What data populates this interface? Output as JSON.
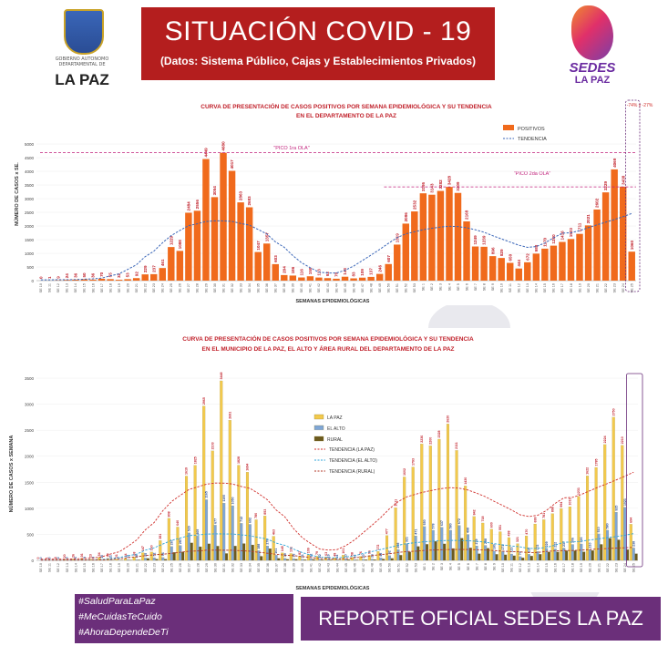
{
  "header": {
    "left_logo_lines": "GOBIERNO AUTONOMO DEPARTAMENTAL DE",
    "left_logo_name": "LA PAZ",
    "title": "SITUACIÓN  COVID - 19",
    "subtitle": "(Datos: Sistema Público, Cajas y Establecimientos Privados)",
    "right_logo_top": "SEDES",
    "right_logo_bottom": "LA PAZ"
  },
  "chart1": {
    "title_line1": "CURVA DE PRESENTACIÓN DE CASOS POSITIVOS POR SEMANA EPIDEMIOLÓGICA Y SU TENDENCIA",
    "title_line2": "EN EL DEPARTAMENTO DE LA PAZ",
    "ylabel": "NÚMERO DE CASOS x SE.",
    "xlabel": "SEMANAS EPIDEMIOLÓGICAS",
    "legend_bar": "POSITIVOS",
    "legend_line": "TENDENCIA",
    "peak1_label": "\"PICO 1ra OLA\"",
    "peak2_label": "\"PICO 2da OLA\"",
    "corner_note": "-74% y -27%",
    "colors": {
      "bar": "#f06a1c",
      "trend": "#3a66b8",
      "peak": "#c01f7a"
    }
  },
  "chart2": {
    "title_line1": "CURVA DE PRESENTACIÓN DE CASOS POSITIVOS POR SEMANA EPIDEMIOLÓGICA Y SU TENDENCIA",
    "title_line2": "EN EL  MUNICIPIO DE LA PAZ, EL ALTO Y ÁREA RURAL DEL DEPARTAMENTO DE LA PAZ",
    "ylabel": "NÚMERO DE CASOS x SEMANA",
    "xlabel": "SEMANAS EPIDEMIOLÓGICAS",
    "legend": [
      "LA PAZ",
      "EL ALTO",
      "RURAL",
      "TENDENCIA (LA PAZ)",
      "TENDENCIA (EL ALTO)",
      "TENDENCIA (RURAL)"
    ],
    "colors": {
      "lapaz": "#f2c94c",
      "elalto": "#7fa6d6",
      "rural": "#6b5a1e",
      "t_lapaz": "#d0312d",
      "t_elalto": "#2fa4d8",
      "t_rural": "#b33a2a"
    }
  },
  "chart_data": [
    {
      "type": "bar",
      "title": "CURVA DE PRESENTACIÓN DE CASOS POSITIVOS POR SEMANA EPIDEMIOLÓGICA Y SU TENDENCIA EN EL DEPARTAMENTO DE LA PAZ",
      "xlabel": "SEMANAS EPIDEMIOLÓGICAS",
      "ylabel": "NÚMERO DE CASOS x SE.",
      "ylim": [
        0,
        5000
      ],
      "yticks": [
        0,
        500,
        1000,
        1500,
        2000,
        2500,
        3000,
        3500,
        4000,
        4500,
        5000
      ],
      "series": [
        {
          "name": "POSITIVOS",
          "values": [
            0,
            1,
            9,
            24,
            36,
            50,
            36,
            70,
            55,
            32,
            53,
            92,
            229,
            237,
            461,
            1229,
            1088,
            2484,
            2556,
            4449,
            3054,
            4680,
            4017,
            2863,
            2683,
            1047,
            1357,
            603,
            204,
            186,
            116,
            159,
            113,
            92,
            70,
            143,
            83,
            109,
            137,
            246,
            607,
            1319,
            2086,
            2532,
            3195,
            3143,
            3282,
            3428,
            3209,
            2168,
            1249,
            1239,
            896,
            829,
            650,
            444,
            672,
            988,
            1170,
            1280,
            1416,
            1523,
            1711,
            2021,
            2602,
            3229,
            4069,
            3438,
            1060
          ]
        }
      ],
      "legend": "top-right"
    },
    {
      "type": "bar",
      "title": "CURVA DE PRESENTACIÓN DE CASOS POSITIVOS POR SEMANA EPIDEMIOLÓGICA Y SU TENDENCIA EN EL  MUNICIPIO DE LA PAZ, EL ALTO Y ÁREA RURAL DEL DEPARTAMENTO DE LA PAZ",
      "xlabel": "SEMANAS EPIDEMIOLÓGICAS",
      "ylabel": "NÚMERO DE CASOS x SEMANA",
      "ylim": [
        0,
        3500
      ],
      "yticks": [
        0,
        500,
        1000,
        1500,
        2000,
        2500,
        3000,
        3500
      ],
      "series": [
        {
          "name": "LA PAZ",
          "values": [
            0,
            1,
            6,
            20,
            26,
            36,
            23,
            54,
            38,
            21,
            34,
            68,
            147,
            160,
            381,
            808,
            640,
            1619,
            1825,
            2965,
            2103,
            3448,
            2691,
            1828,
            1694,
            780,
            853,
            463,
            145,
            131,
            82,
            109,
            79,
            63,
            49,
            101,
            58,
            76,
            96,
            172,
            477,
            1011,
            1602,
            1793,
            2236,
            2200,
            2328,
            2620,
            2111,
            1430,
            842,
            718,
            600,
            551,
            438,
            321,
            470,
            699,
            781,
            898,
            994,
            1031,
            1231,
            1622,
            1785,
            2224,
            2750,
            2210,
            694
          ]
        },
        {
          "name": "EL ALTO",
          "values": [
            0,
            0,
            2,
            3,
            6,
            9,
            8,
            10,
            11,
            7,
            12,
            15,
            45,
            52,
            56,
            267,
            287,
            529,
            469,
            1165,
            677,
            1100,
            1050,
            712,
            692,
            188,
            278,
            101,
            39,
            33,
            21,
            32,
            22,
            19,
            14,
            27,
            16,
            20,
            26,
            48,
            92,
            208,
            321,
            471,
            650,
            578,
            637,
            580,
            672,
            498,
            279,
            288,
            180,
            171,
            123,
            74,
            118,
            172,
            229,
            222,
            237,
            306,
            316,
            210,
            510,
            580,
            925,
            1021,
            238
          ]
        },
        {
          "name": "RURAL",
          "values": [
            0,
            0,
            1,
            1,
            4,
            5,
            5,
            6,
            6,
            4,
            7,
            9,
            37,
            25,
            24,
            154,
            161,
            336,
            262,
            319,
            274,
            132,
            276,
            323,
            297,
            79,
            226,
            39,
            20,
            22,
            13,
            18,
            12,
            10,
            7,
            15,
            9,
            13,
            15,
            26,
            38,
            100,
            163,
            268,
            309,
            365,
            317,
            228,
            426,
            240,
            128,
            233,
            116,
            107,
            89,
            49,
            84,
            117,
            160,
            160,
            185,
            186,
            164,
            189,
            307,
            425,
            394,
            207,
            128
          ]
        }
      ],
      "legend": "center"
    }
  ],
  "footer": {
    "tags": [
      "#SaludParaLaPaz",
      "#MeCuidasTeCuido",
      "#AhoraDependeDeTi"
    ],
    "report": "REPORTE OFICIAL SEDES LA PAZ"
  }
}
